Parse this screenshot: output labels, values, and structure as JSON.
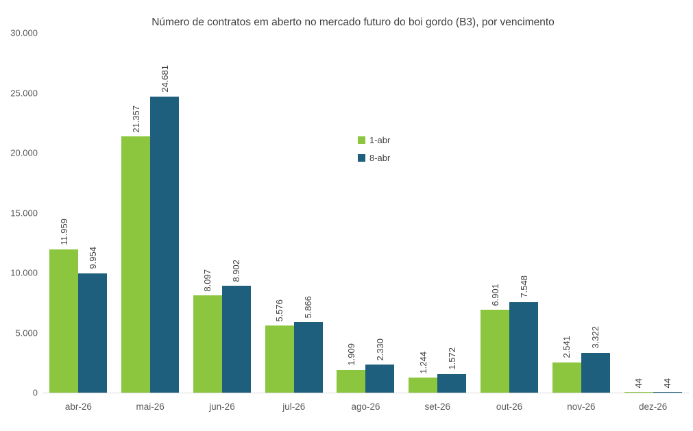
{
  "chart_data": {
    "type": "bar",
    "title": "Número de contratos em aberto no mercado futuro do boi gordo (B3), por vencimento",
    "categories": [
      "abr-26",
      "mai-26",
      "jun-26",
      "jul-26",
      "ago-26",
      "set-26",
      "out-26",
      "nov-26",
      "dez-26"
    ],
    "series": [
      {
        "name": "1-abr",
        "color": "#8CC63F",
        "values": [
          11959,
          21357,
          8097,
          5576,
          1909,
          1244,
          6901,
          2541,
          44
        ],
        "labels": [
          "11.959",
          "21.357",
          "8.097",
          "5.576",
          "1.909",
          "1.244",
          "6.901",
          "2.541",
          "44"
        ]
      },
      {
        "name": "8-abr",
        "color": "#1E5F7D",
        "values": [
          9954,
          24681,
          8902,
          5866,
          2330,
          1572,
          7548,
          3322,
          44
        ],
        "labels": [
          "9.954",
          "24.681",
          "8.902",
          "5.866",
          "2.330",
          "1.572",
          "7.548",
          "3.322",
          "44"
        ]
      }
    ],
    "xlabel": "",
    "ylabel": "",
    "ylim": [
      0,
      30000
    ],
    "yticks": [
      {
        "value": 0,
        "label": "0"
      },
      {
        "value": 5000,
        "label": "5.000"
      },
      {
        "value": 10000,
        "label": "10.000"
      },
      {
        "value": 15000,
        "label": "15.000"
      },
      {
        "value": 20000,
        "label": "20.000"
      },
      {
        "value": 25000,
        "label": "25.000"
      },
      {
        "value": 30000,
        "label": "30.000"
      }
    ],
    "grid": false,
    "legend_position": "inside-upper-center",
    "axis_line_color": "#D9D9D9",
    "tick_text_color": "#595959",
    "data_label_color": "#404040",
    "title_color": "#3F3F3F"
  }
}
